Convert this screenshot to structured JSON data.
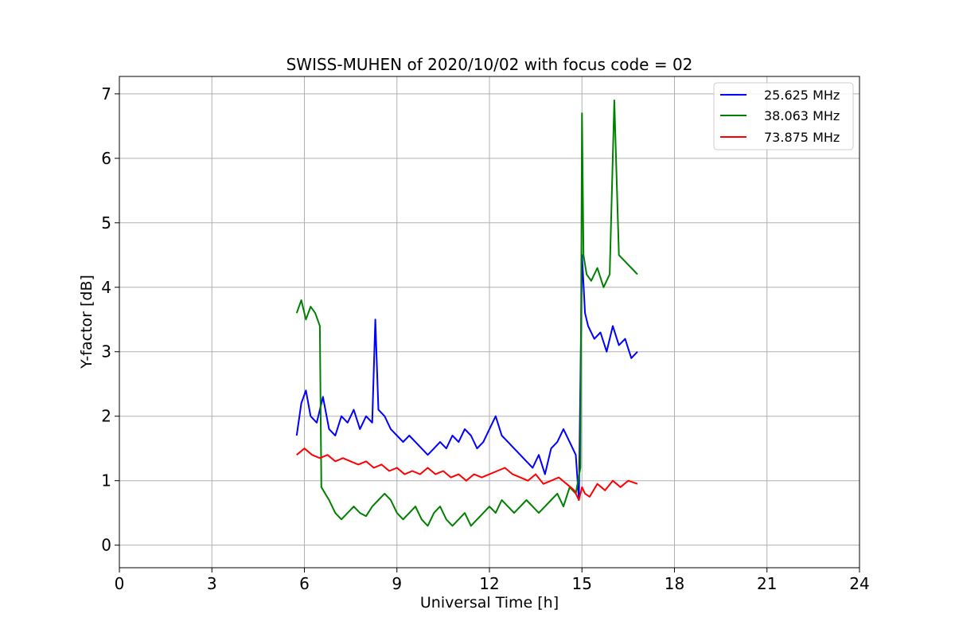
{
  "chart_data": {
    "type": "line",
    "title": "SWISS-MUHEN of 2020/10/02 with focus code = 02",
    "xlabel": "Universal Time [h]",
    "ylabel": "Y-factor [dB]",
    "xlim": [
      0,
      24
    ],
    "ylim": [
      -0.35,
      7.27
    ],
    "xticks": [
      0,
      3,
      6,
      9,
      12,
      15,
      18,
      21,
      24
    ],
    "yticks": [
      0,
      1,
      2,
      3,
      4,
      5,
      6,
      7
    ],
    "grid": true,
    "legend_position": "top-right",
    "series": [
      {
        "name": "25.625 MHz",
        "color": "#0000ff",
        "x": [
          5.75,
          5.9,
          6.05,
          6.2,
          6.4,
          6.6,
          6.8,
          7.0,
          7.2,
          7.4,
          7.6,
          7.8,
          8.0,
          8.2,
          8.3,
          8.4,
          8.6,
          8.8,
          9.0,
          9.2,
          9.4,
          9.6,
          9.8,
          10.0,
          10.2,
          10.4,
          10.6,
          10.8,
          11.0,
          11.2,
          11.4,
          11.6,
          11.8,
          12.0,
          12.2,
          12.4,
          12.6,
          12.8,
          13.0,
          13.2,
          13.4,
          13.6,
          13.8,
          14.0,
          14.2,
          14.4,
          14.6,
          14.8,
          14.9,
          15.0,
          15.1,
          15.2,
          15.4,
          15.6,
          15.8,
          16.0,
          16.2,
          16.4,
          16.6,
          16.8
        ],
        "y": [
          1.7,
          2.2,
          2.4,
          2.0,
          1.9,
          2.3,
          1.8,
          1.7,
          2.0,
          1.9,
          2.1,
          1.8,
          2.0,
          1.9,
          3.5,
          2.1,
          2.0,
          1.8,
          1.7,
          1.6,
          1.7,
          1.6,
          1.5,
          1.4,
          1.5,
          1.6,
          1.5,
          1.7,
          1.6,
          1.8,
          1.7,
          1.5,
          1.6,
          1.8,
          2.0,
          1.7,
          1.6,
          1.5,
          1.4,
          1.3,
          1.2,
          1.4,
          1.1,
          1.5,
          1.6,
          1.8,
          1.6,
          1.4,
          0.7,
          4.5,
          3.6,
          3.4,
          3.2,
          3.3,
          3.0,
          3.4,
          3.1,
          3.2,
          2.9,
          3.0
        ]
      },
      {
        "name": "38.063 MHz",
        "color": "#008000",
        "x": [
          5.75,
          5.9,
          6.05,
          6.2,
          6.35,
          6.5,
          6.55,
          6.8,
          7.0,
          7.2,
          7.4,
          7.6,
          7.8,
          8.0,
          8.2,
          8.4,
          8.6,
          8.8,
          9.0,
          9.2,
          9.4,
          9.6,
          9.8,
          10.0,
          10.2,
          10.4,
          10.6,
          10.8,
          11.0,
          11.2,
          11.4,
          11.6,
          11.8,
          12.0,
          12.2,
          12.4,
          12.6,
          12.8,
          13.0,
          13.2,
          13.4,
          13.6,
          13.8,
          14.0,
          14.2,
          14.4,
          14.6,
          14.8,
          14.95,
          15.0,
          15.05,
          15.15,
          15.3,
          15.5,
          15.7,
          15.9,
          16.05,
          16.2,
          16.4,
          16.6,
          16.8
        ],
        "y": [
          3.6,
          3.8,
          3.5,
          3.7,
          3.6,
          3.4,
          0.9,
          0.7,
          0.5,
          0.4,
          0.5,
          0.6,
          0.5,
          0.45,
          0.6,
          0.7,
          0.8,
          0.7,
          0.5,
          0.4,
          0.5,
          0.6,
          0.4,
          0.3,
          0.5,
          0.6,
          0.4,
          0.3,
          0.4,
          0.5,
          0.3,
          0.4,
          0.5,
          0.6,
          0.5,
          0.7,
          0.6,
          0.5,
          0.6,
          0.7,
          0.6,
          0.5,
          0.6,
          0.7,
          0.8,
          0.6,
          0.9,
          0.8,
          1.2,
          6.7,
          4.5,
          4.2,
          4.1,
          4.3,
          4.0,
          4.2,
          6.9,
          4.5,
          4.4,
          4.3,
          4.2
        ]
      },
      {
        "name": "73.875 MHz",
        "color": "#ff0000",
        "x": [
          5.75,
          6.0,
          6.25,
          6.5,
          6.75,
          7.0,
          7.25,
          7.5,
          7.75,
          8.0,
          8.25,
          8.5,
          8.75,
          9.0,
          9.25,
          9.5,
          9.75,
          10.0,
          10.25,
          10.5,
          10.75,
          11.0,
          11.25,
          11.5,
          11.75,
          12.0,
          12.25,
          12.5,
          12.75,
          13.0,
          13.25,
          13.5,
          13.75,
          14.0,
          14.25,
          14.5,
          14.75,
          14.9,
          15.0,
          15.1,
          15.25,
          15.5,
          15.75,
          16.0,
          16.25,
          16.5,
          16.8
        ],
        "y": [
          1.4,
          1.5,
          1.4,
          1.35,
          1.4,
          1.3,
          1.35,
          1.3,
          1.25,
          1.3,
          1.2,
          1.25,
          1.15,
          1.2,
          1.1,
          1.15,
          1.1,
          1.2,
          1.1,
          1.15,
          1.05,
          1.1,
          1.0,
          1.1,
          1.05,
          1.1,
          1.15,
          1.2,
          1.1,
          1.05,
          1.0,
          1.1,
          0.95,
          1.0,
          1.05,
          0.95,
          0.85,
          0.7,
          0.9,
          0.8,
          0.75,
          0.95,
          0.85,
          1.0,
          0.9,
          1.0,
          0.95
        ]
      }
    ]
  }
}
